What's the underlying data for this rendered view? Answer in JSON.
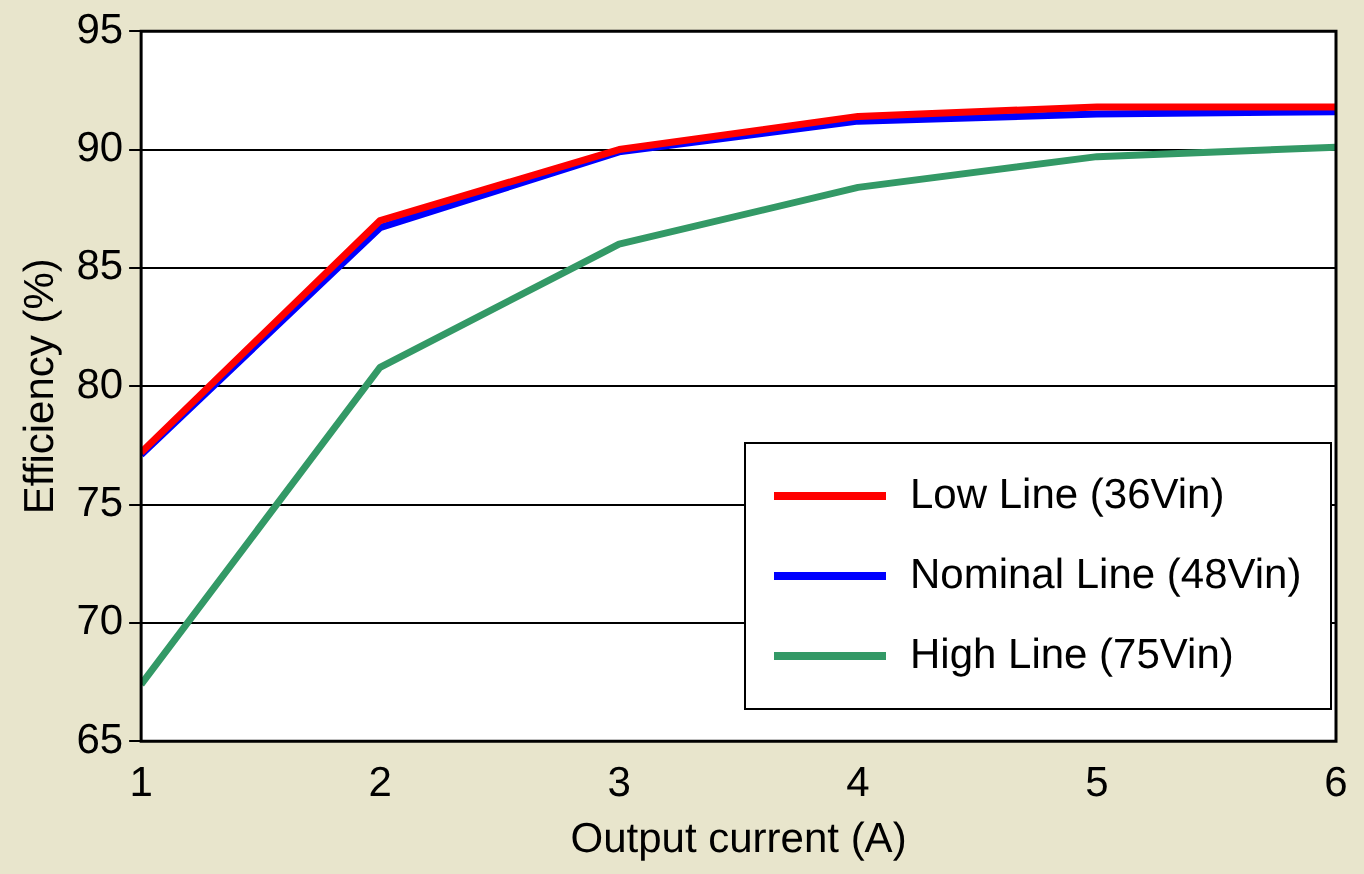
{
  "chart_data": {
    "type": "line",
    "xlabel": "Output current (A)",
    "ylabel": "Efficiency (%)",
    "x": [
      1,
      2,
      3,
      4,
      5,
      6
    ],
    "xlim": [
      1,
      6
    ],
    "xticks": [
      1,
      2,
      3,
      4,
      5,
      6
    ],
    "ylim": [
      65,
      95
    ],
    "yticks": [
      65,
      70,
      75,
      80,
      85,
      90,
      95
    ],
    "grid": "y",
    "legend": "bottom right",
    "marker": "none",
    "line_style": "solid",
    "series": [
      {
        "name": "Low Line (36Vin)",
        "color": "#ff0000",
        "values": [
          77.2,
          87.0,
          90.0,
          91.4,
          91.8,
          91.8
        ]
      },
      {
        "name": "Nominal Line (48Vin)",
        "color": "#0000ff",
        "values": [
          77.1,
          86.7,
          89.9,
          91.2,
          91.5,
          91.6
        ]
      },
      {
        "name": "High Line (75Vin)",
        "color": "#339966",
        "values": [
          67.4,
          80.8,
          86.0,
          88.4,
          89.7,
          90.1
        ]
      }
    ]
  }
}
